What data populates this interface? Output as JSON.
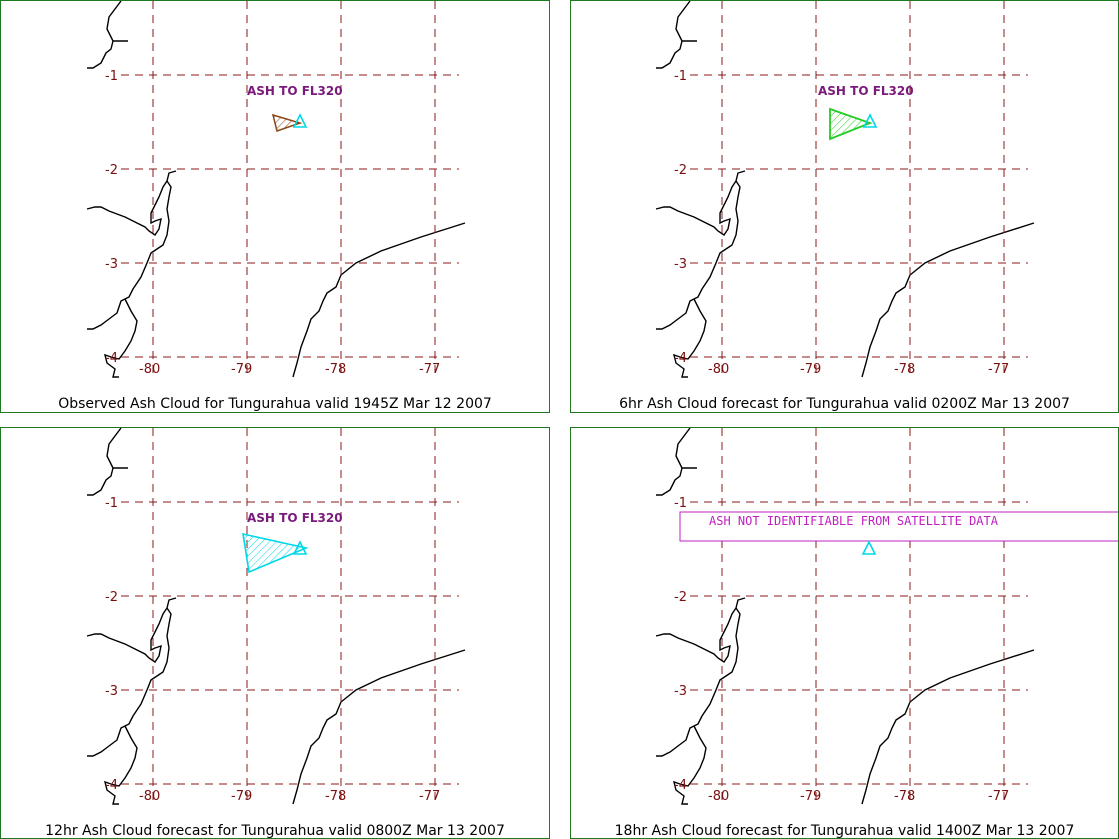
{
  "colors": {
    "grid": "#8b1a1a",
    "tick": "#7a1010",
    "coast": "#000000",
    "frame": "#1f7a1f",
    "ash_label": "#7a1a7a",
    "volcano": "#00d8e8",
    "notice": "#c020c0"
  },
  "lat_ticks": [
    "-1",
    "-2",
    "-3",
    "-4"
  ],
  "lon_ticks": [
    "-80",
    "-79",
    "-78",
    "-77"
  ],
  "volcano_icon": "volcano-triangle-icon",
  "panels": [
    {
      "id": "obs",
      "caption": "Observed Ash Cloud for Tungurahua valid 1945Z Mar 12 2007",
      "ash_label": "ASH TO FL320",
      "cloud_color": "#8b4513",
      "notice": ""
    },
    {
      "id": "f06",
      "caption": "6hr Ash Cloud forecast for Tungurahua valid 0200Z Mar 13 2007",
      "ash_label": "ASH TO FL320",
      "cloud_color": "#22cc22",
      "notice": ""
    },
    {
      "id": "f12",
      "caption": "12hr Ash Cloud forecast for Tungurahua valid 0800Z Mar 13 2007",
      "ash_label": "ASH TO FL320",
      "cloud_color": "#00d8e8",
      "notice": ""
    },
    {
      "id": "f18",
      "caption": "18hr Ash Cloud forecast for Tungurahua valid 1400Z Mar 13 2007",
      "ash_label": "",
      "cloud_color": "",
      "notice": "ASH NOT IDENTIFIABLE FROM SATELLITE DATA"
    }
  ]
}
